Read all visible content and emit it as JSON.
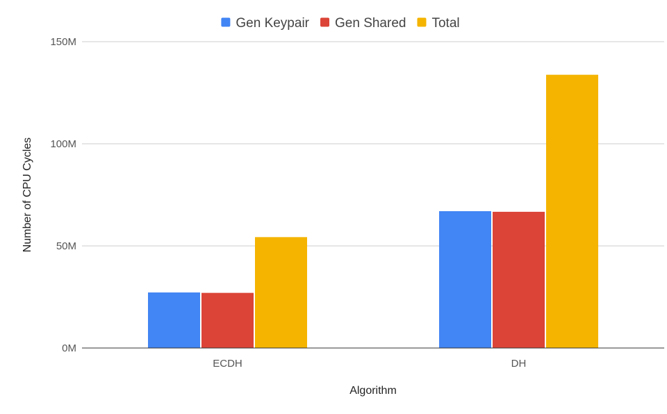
{
  "chart_data": {
    "type": "bar",
    "title": "",
    "xlabel": "Algorithm",
    "ylabel": "Number of CPU Cycles",
    "categories": [
      "ECDH",
      "DH"
    ],
    "series": [
      {
        "name": "Gen Keypair",
        "color": "#4285f4",
        "values": [
          27200000,
          67000000
        ]
      },
      {
        "name": "Gen Shared",
        "color": "#db4437",
        "values": [
          27000000,
          66700000
        ]
      },
      {
        "name": "Total",
        "color": "#f4b400",
        "values": [
          54300000,
          133800000
        ]
      }
    ],
    "ylim": [
      0,
      150000000
    ],
    "yticks": [
      {
        "value": 0,
        "label": "0M"
      },
      {
        "value": 50000000,
        "label": "50M"
      },
      {
        "value": 100000000,
        "label": "100M"
      },
      {
        "value": 150000000,
        "label": "150M"
      }
    ],
    "grid": true,
    "legend_position": "top-center"
  }
}
